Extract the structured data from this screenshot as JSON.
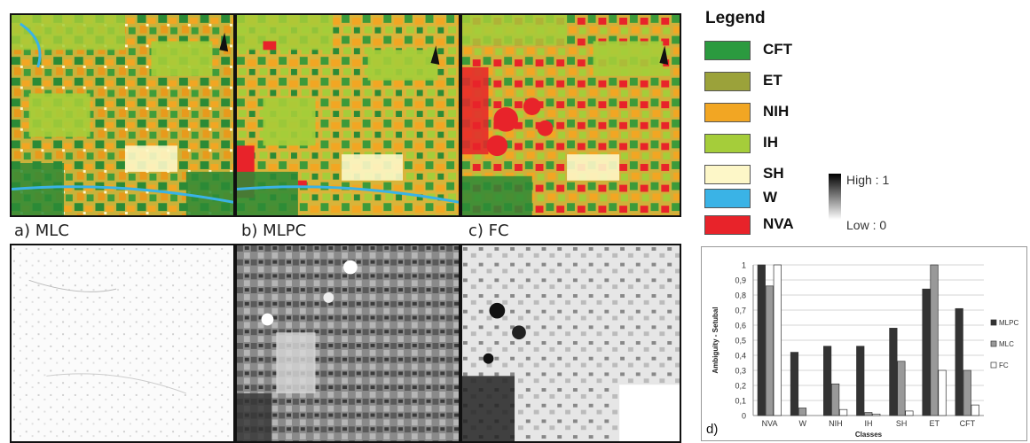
{
  "panels": {
    "a": "a) MLC",
    "b": "b) MLPC",
    "c": "c) FC"
  },
  "legend": {
    "title": "Legend",
    "items": [
      {
        "label": "CFT",
        "color": "#2b9a3f"
      },
      {
        "label": "ET",
        "color": "#9ba23a"
      },
      {
        "label": "NIH",
        "color": "#f2a623"
      },
      {
        "label": "IH",
        "color": "#a5cd3a"
      },
      {
        "label": "SH",
        "color": "#fdf7c8"
      },
      {
        "label": "W",
        "color": "#3ab3e6"
      },
      {
        "label": "NVA",
        "color": "#e8232a"
      }
    ],
    "scale_high": "High : 1",
    "scale_low": "Low : 0"
  },
  "chart_label": "d)",
  "chart_data": {
    "type": "bar",
    "ylabel": "Ambiguity - Setubal",
    "xlabel": "Classes",
    "ylim": [
      0,
      1
    ],
    "yticks": [
      "0",
      "0,1",
      "0,2",
      "0,3",
      "0,4",
      "0,5",
      "0,6",
      "0,7",
      "0,8",
      "0,9",
      "1"
    ],
    "categories": [
      "NVA",
      "W",
      "NIH",
      "IH",
      "SH",
      "ET",
      "CFT"
    ],
    "grid": true,
    "legend_position": "right",
    "series": [
      {
        "name": "MLPC",
        "color": "#333333",
        "values": [
          1.0,
          0.42,
          0.46,
          0.46,
          0.58,
          0.84,
          0.71
        ]
      },
      {
        "name": "MLC",
        "color": "#999999",
        "values": [
          0.86,
          0.05,
          0.21,
          0.02,
          0.36,
          1.0,
          0.3
        ]
      },
      {
        "name": "FC",
        "color": "#ffffff",
        "values": [
          1.0,
          0.0,
          0.04,
          0.01,
          0.03,
          0.3,
          0.07
        ]
      }
    ]
  }
}
